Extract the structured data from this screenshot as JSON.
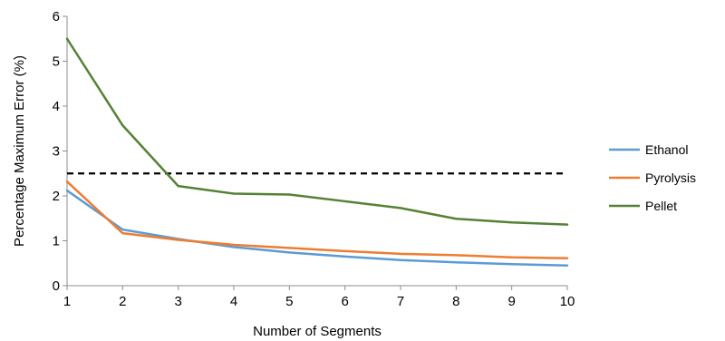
{
  "chart_data": {
    "type": "line",
    "title": "",
    "xlabel": "Number of Segments",
    "ylabel": "Percentage Maximum Error (%)",
    "x": [
      1,
      2,
      3,
      4,
      5,
      6,
      7,
      8,
      9,
      10
    ],
    "xlim": [
      1,
      10
    ],
    "ylim": [
      0,
      6
    ],
    "xticks": [
      1,
      2,
      3,
      4,
      5,
      6,
      7,
      8,
      9,
      10
    ],
    "yticks": [
      0,
      1,
      2,
      3,
      4,
      5,
      6
    ],
    "grid": false,
    "legend_position": "right",
    "series": [
      {
        "name": "Ethanol",
        "color": "#5b9bd5",
        "values": [
          2.12,
          1.25,
          1.04,
          0.86,
          0.74,
          0.65,
          0.57,
          0.52,
          0.48,
          0.45
        ]
      },
      {
        "name": "Pyrolysis",
        "color": "#ed7d31",
        "values": [
          2.32,
          1.17,
          1.02,
          0.91,
          0.84,
          0.77,
          0.71,
          0.68,
          0.63,
          0.61
        ]
      },
      {
        "name": "Pellet",
        "color": "#548235",
        "values": [
          5.5,
          3.57,
          2.22,
          2.05,
          2.03,
          1.88,
          1.73,
          1.49,
          1.41,
          1.36
        ]
      }
    ],
    "reference_lines": [
      {
        "axis": "y",
        "value": 2.5,
        "style": "dashed",
        "color": "#000000"
      }
    ]
  }
}
